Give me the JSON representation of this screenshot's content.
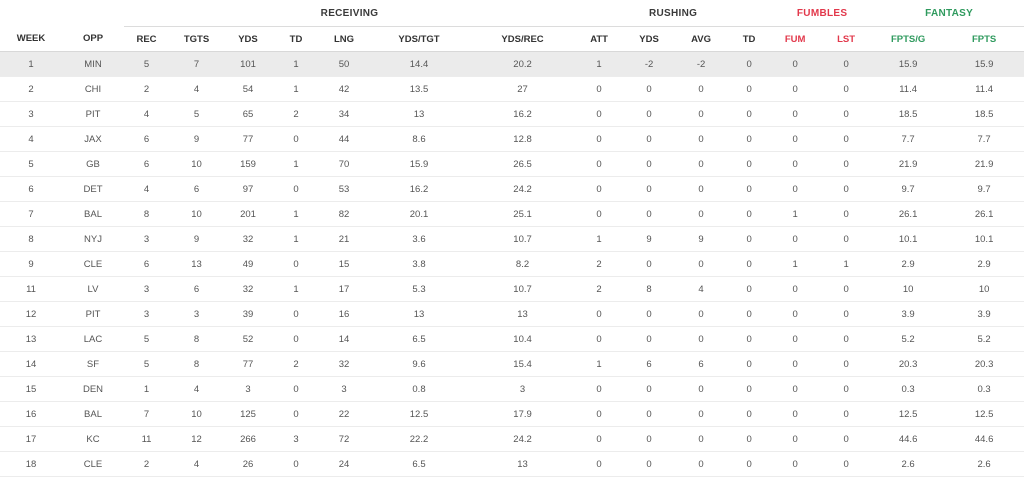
{
  "groups": {
    "receiving": "RECEIVING",
    "rushing": "RUSHING",
    "fumbles": "FUMBLES",
    "fantasy": "FANTASY"
  },
  "columns": [
    "WEEK",
    "OPP",
    "REC",
    "TGTS",
    "YDS",
    "TD",
    "LNG",
    "YDS/TGT",
    "YDS/REC",
    "ATT",
    "YDS",
    "AVG",
    "TD",
    "FUM",
    "LST",
    "FPTS/G",
    "FPTS"
  ],
  "colors": {
    "fumbles": "#e2384b",
    "fantasy": "#2f9a5e",
    "highlight_row": "#ebebeb"
  },
  "rows": [
    [
      "1",
      "MIN",
      "5",
      "7",
      "101",
      "1",
      "50",
      "14.4",
      "20.2",
      "1",
      "-2",
      "-2",
      "0",
      "0",
      "0",
      "15.9",
      "15.9"
    ],
    [
      "2",
      "CHI",
      "2",
      "4",
      "54",
      "1",
      "42",
      "13.5",
      "27",
      "0",
      "0",
      "0",
      "0",
      "0",
      "0",
      "11.4",
      "11.4"
    ],
    [
      "3",
      "PIT",
      "4",
      "5",
      "65",
      "2",
      "34",
      "13",
      "16.2",
      "0",
      "0",
      "0",
      "0",
      "0",
      "0",
      "18.5",
      "18.5"
    ],
    [
      "4",
      "JAX",
      "6",
      "9",
      "77",
      "0",
      "44",
      "8.6",
      "12.8",
      "0",
      "0",
      "0",
      "0",
      "0",
      "0",
      "7.7",
      "7.7"
    ],
    [
      "5",
      "GB",
      "6",
      "10",
      "159",
      "1",
      "70",
      "15.9",
      "26.5",
      "0",
      "0",
      "0",
      "0",
      "0",
      "0",
      "21.9",
      "21.9"
    ],
    [
      "6",
      "DET",
      "4",
      "6",
      "97",
      "0",
      "53",
      "16.2",
      "24.2",
      "0",
      "0",
      "0",
      "0",
      "0",
      "0",
      "9.7",
      "9.7"
    ],
    [
      "7",
      "BAL",
      "8",
      "10",
      "201",
      "1",
      "82",
      "20.1",
      "25.1",
      "0",
      "0",
      "0",
      "0",
      "1",
      "0",
      "26.1",
      "26.1"
    ],
    [
      "8",
      "NYJ",
      "3",
      "9",
      "32",
      "1",
      "21",
      "3.6",
      "10.7",
      "1",
      "9",
      "9",
      "0",
      "0",
      "0",
      "10.1",
      "10.1"
    ],
    [
      "9",
      "CLE",
      "6",
      "13",
      "49",
      "0",
      "15",
      "3.8",
      "8.2",
      "2",
      "0",
      "0",
      "0",
      "1",
      "1",
      "2.9",
      "2.9"
    ],
    [
      "11",
      "LV",
      "3",
      "6",
      "32",
      "1",
      "17",
      "5.3",
      "10.7",
      "2",
      "8",
      "4",
      "0",
      "0",
      "0",
      "10",
      "10"
    ],
    [
      "12",
      "PIT",
      "3",
      "3",
      "39",
      "0",
      "16",
      "13",
      "13",
      "0",
      "0",
      "0",
      "0",
      "0",
      "0",
      "3.9",
      "3.9"
    ],
    [
      "13",
      "LAC",
      "5",
      "8",
      "52",
      "0",
      "14",
      "6.5",
      "10.4",
      "0",
      "0",
      "0",
      "0",
      "0",
      "0",
      "5.2",
      "5.2"
    ],
    [
      "14",
      "SF",
      "5",
      "8",
      "77",
      "2",
      "32",
      "9.6",
      "15.4",
      "1",
      "6",
      "6",
      "0",
      "0",
      "0",
      "20.3",
      "20.3"
    ],
    [
      "15",
      "DEN",
      "1",
      "4",
      "3",
      "0",
      "3",
      "0.8",
      "3",
      "0",
      "0",
      "0",
      "0",
      "0",
      "0",
      "0.3",
      "0.3"
    ],
    [
      "16",
      "BAL",
      "7",
      "10",
      "125",
      "0",
      "22",
      "12.5",
      "17.9",
      "0",
      "0",
      "0",
      "0",
      "0",
      "0",
      "12.5",
      "12.5"
    ],
    [
      "17",
      "KC",
      "11",
      "12",
      "266",
      "3",
      "72",
      "22.2",
      "24.2",
      "0",
      "0",
      "0",
      "0",
      "0",
      "0",
      "44.6",
      "44.6"
    ],
    [
      "18",
      "CLE",
      "2",
      "4",
      "26",
      "0",
      "24",
      "6.5",
      "13",
      "0",
      "0",
      "0",
      "0",
      "0",
      "0",
      "2.6",
      "2.6"
    ]
  ]
}
